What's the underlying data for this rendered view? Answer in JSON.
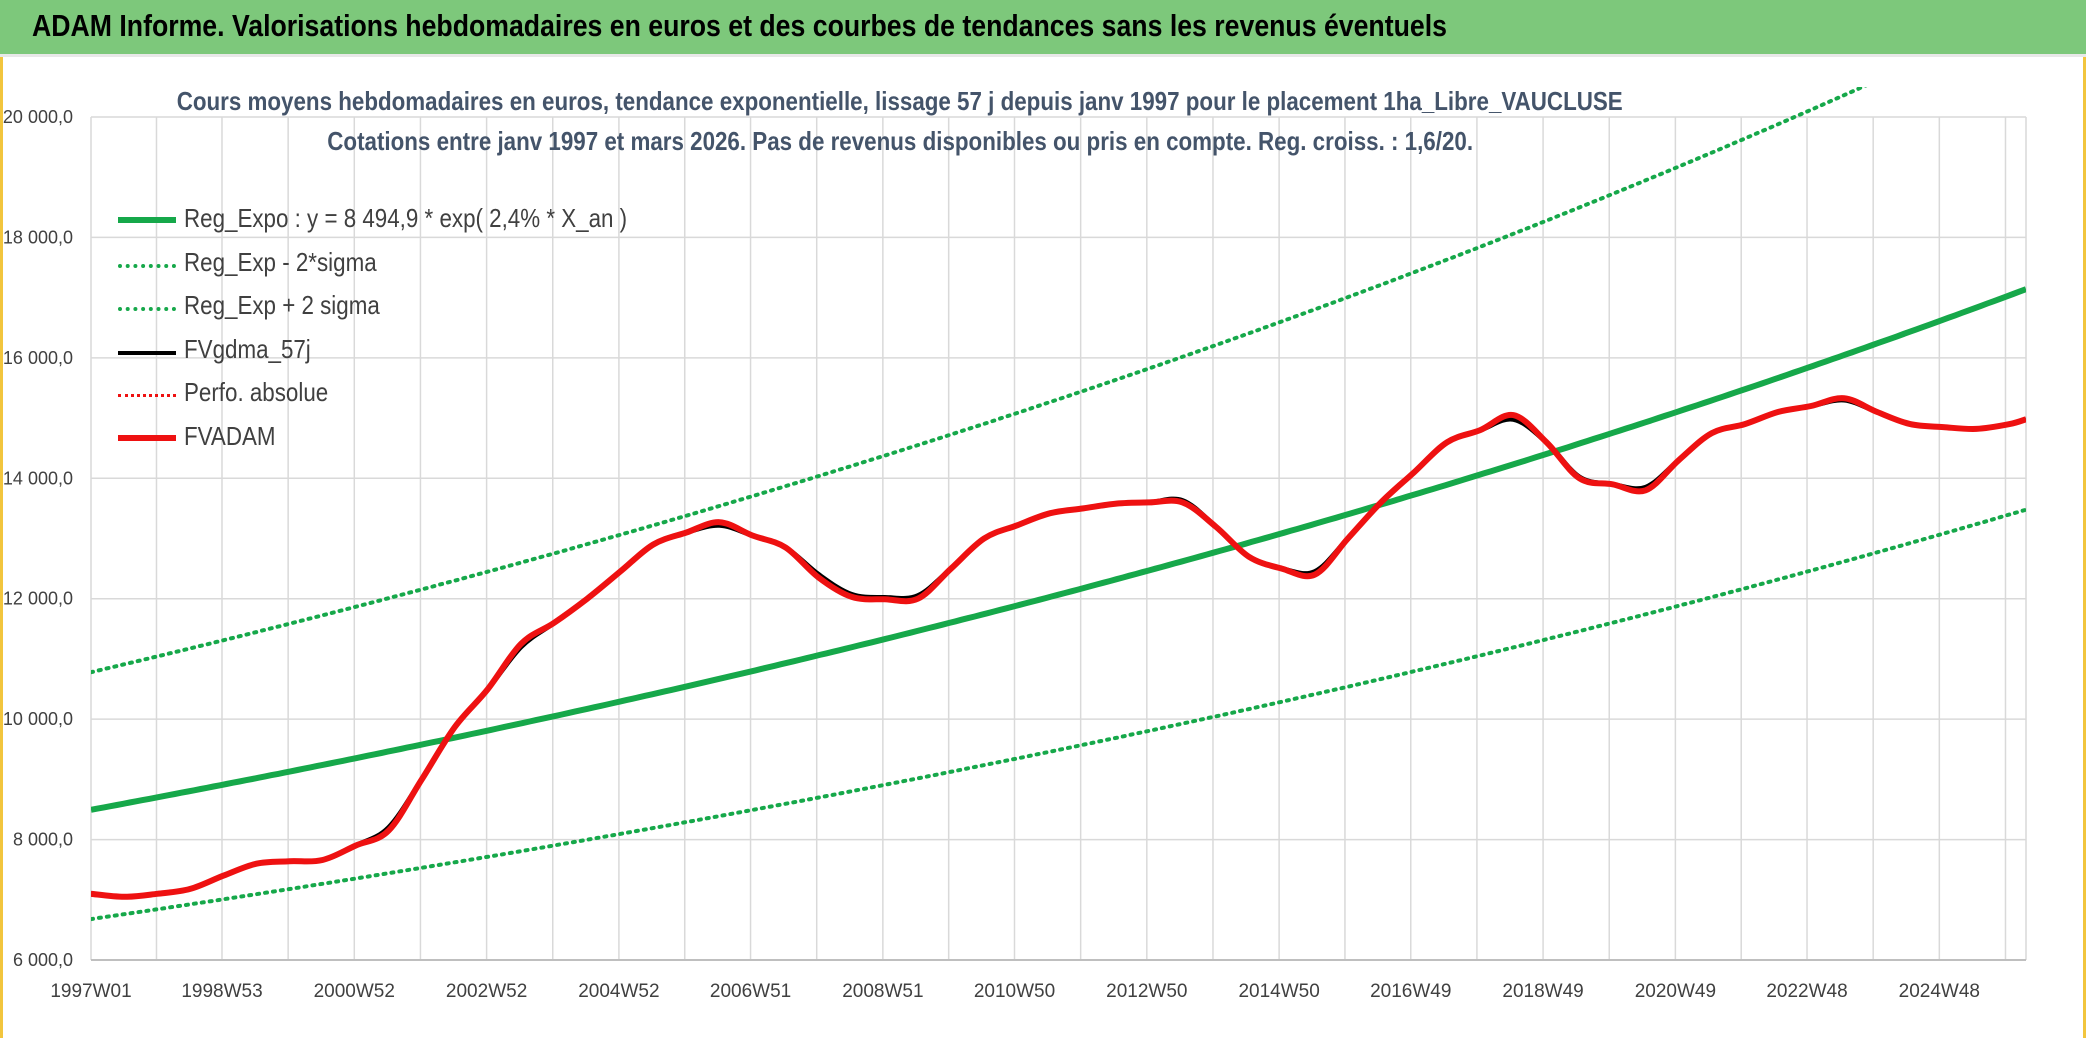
{
  "header": {
    "title": "ADAM Informe. Valorisations hebdomadaires en euros et des courbes de tendances sans les revenus éventuels"
  },
  "colors": {
    "header_bg": "#7dc87b",
    "frame": "#f2c53d",
    "green": "#16a84a",
    "red": "#ee1111",
    "black": "#000000",
    "grid": "#d9d9d9",
    "text": "#404040"
  },
  "chart_data": {
    "type": "line",
    "title_line1": "Cours moyens hebdomadaires en euros, tendance exponentielle, lissage 57 j depuis janv 1997 pour le placement 1ha_Libre_VAUCLUSE",
    "title_line2": "Cotations entre janv 1997 et mars 2026. Pas de revenus disponibles ou pris en compte. Reg. croiss. : 1,6/20.",
    "xlabel": "",
    "ylabel": "",
    "x_range": [
      1997.0,
      2026.25
    ],
    "ylim": [
      6000,
      20000
    ],
    "y_ticks": [
      6000,
      8000,
      10000,
      12000,
      14000,
      16000,
      18000,
      20000
    ],
    "y_tick_labels": [
      "6 000,0",
      "8 000,0",
      "10 000,0",
      "12 000,0",
      "14 000,0",
      "16 000,0",
      "18 000,0",
      "20 000,0"
    ],
    "x_ticks": [
      1997.0,
      1998.98,
      2000.98,
      2002.98,
      2004.98,
      2006.97,
      2008.97,
      2010.96,
      2012.96,
      2014.96,
      2016.95,
      2018.95,
      2020.95,
      2022.94,
      2024.94
    ],
    "x_tick_labels": [
      "1997W01",
      "1998W53",
      "2000W52",
      "2002W52",
      "2004W52",
      "2006W51",
      "2008W51",
      "2010W50",
      "2012W50",
      "2014W50",
      "2016W49",
      "2018W49",
      "2020W49",
      "2022W48",
      "2024W48"
    ],
    "grid": true,
    "legend_position": "top-left",
    "legend": [
      {
        "label": "Reg_Expo : y = 8 494,9 * exp( 2,4% *  X_an )",
        "color": "#16a84a",
        "style": "solid-thick"
      },
      {
        "label": "Reg_Exp - 2*sigma",
        "color": "#16a84a",
        "style": "dotted"
      },
      {
        "label": "Reg_Exp + 2 sigma",
        "color": "#16a84a",
        "style": "dotted"
      },
      {
        "label": "FVgdma_57j",
        "color": "#000000",
        "style": "solid"
      },
      {
        "label": "Perfo. absolue",
        "color": "#ee1111",
        "style": "dotted"
      },
      {
        "label": "FVADAM",
        "color": "#ee1111",
        "style": "solid-thick"
      }
    ],
    "series": [
      {
        "name": "Reg_Expo : y = 8 494,9 * exp( 2,4% *  X_an )",
        "kind": "exp",
        "a": 8494.9,
        "b": 0.024,
        "x0": 1997.0
      },
      {
        "name": "Reg_Exp - 2*sigma",
        "kind": "exp",
        "a": 6680,
        "b": 0.024,
        "x0": 1997.0
      },
      {
        "name": "Reg_Exp + 2 sigma",
        "kind": "exp",
        "a": 10780,
        "b": 0.024,
        "x0": 1997.0
      },
      {
        "name": "FVgdma_57j",
        "kind": "points",
        "x": [
          1997.0,
          1997.5,
          1998.0,
          1998.5,
          1999.0,
          1999.5,
          2000.0,
          2000.5,
          2001.0,
          2001.5,
          2002.0,
          2002.5,
          2003.0,
          2003.5,
          2004.0,
          2004.5,
          2005.0,
          2005.5,
          2006.0,
          2006.5,
          2007.0,
          2007.5,
          2008.0,
          2008.5,
          2009.0,
          2009.5,
          2010.0,
          2010.5,
          2011.0,
          2011.5,
          2012.0,
          2012.5,
          2013.0,
          2013.5,
          2014.0,
          2014.5,
          2015.0,
          2015.5,
          2016.0,
          2016.5,
          2017.0,
          2017.5,
          2018.0,
          2018.5,
          2019.0,
          2019.5,
          2020.0,
          2020.5,
          2021.0,
          2021.5,
          2022.0,
          2022.5,
          2023.0,
          2023.5,
          2024.0,
          2024.5,
          2025.0,
          2025.5,
          2026.0,
          2026.25
        ],
        "y": [
          7100,
          7050,
          7100,
          7180,
          7400,
          7600,
          7640,
          7660,
          7900,
          8200,
          9000,
          9870,
          10500,
          11200,
          11600,
          12000,
          12450,
          12900,
          13100,
          13220,
          13050,
          12850,
          12400,
          12070,
          12020,
          12050,
          12500,
          13000,
          13220,
          13420,
          13500,
          13580,
          13600,
          13630,
          13200,
          12700,
          12500,
          12450,
          13000,
          13600,
          14100,
          14600,
          14800,
          14980,
          14600,
          14020,
          13900,
          13850,
          14300,
          14750,
          14900,
          15100,
          15200,
          15300,
          15100,
          14900,
          14850,
          14820,
          14900,
          14980
        ]
      },
      {
        "name": "Perfo. absolue",
        "kind": "points",
        "x": [
          1997.0,
          1997.5,
          1998.0,
          1998.5,
          1999.0,
          1999.5,
          2000.0,
          2000.5,
          2001.0,
          2001.5,
          2002.0,
          2002.5,
          2003.0,
          2003.5,
          2004.0,
          2004.5,
          2005.0,
          2005.5,
          2006.0,
          2006.5,
          2007.0,
          2007.5,
          2008.0,
          2008.5,
          2009.0,
          2009.5,
          2010.0,
          2010.5,
          2011.0,
          2011.5,
          2012.0,
          2012.5,
          2013.0,
          2013.5,
          2014.0,
          2014.5,
          2015.0,
          2015.5,
          2016.0,
          2016.5,
          2017.0,
          2017.5,
          2018.0,
          2018.5,
          2019.0,
          2019.5,
          2020.0,
          2020.5,
          2021.0,
          2021.5,
          2022.0,
          2022.5,
          2023.0,
          2023.5,
          2024.0,
          2024.5,
          2025.0,
          2025.5,
          2026.0,
          2026.25
        ],
        "y": [
          7100,
          7050,
          7100,
          7180,
          7400,
          7600,
          7640,
          7660,
          7900,
          8150,
          9000,
          9870,
          10500,
          11250,
          11600,
          12000,
          12450,
          12900,
          13100,
          13270,
          13050,
          12850,
          12350,
          12030,
          11990,
          12000,
          12500,
          13000,
          13220,
          13420,
          13500,
          13580,
          13600,
          13600,
          13200,
          12700,
          12500,
          12400,
          13000,
          13600,
          14100,
          14600,
          14800,
          15050,
          14600,
          14000,
          13900,
          13800,
          14300,
          14750,
          14900,
          15100,
          15200,
          15330,
          15100,
          14900,
          14850,
          14820,
          14900,
          14980
        ]
      },
      {
        "name": "FVADAM",
        "kind": "points",
        "x": [
          1997.0,
          1997.5,
          1998.0,
          1998.5,
          1999.0,
          1999.5,
          2000.0,
          2000.5,
          2001.0,
          2001.5,
          2002.0,
          2002.5,
          2003.0,
          2003.5,
          2004.0,
          2004.5,
          2005.0,
          2005.5,
          2006.0,
          2006.5,
          2007.0,
          2007.5,
          2008.0,
          2008.5,
          2009.0,
          2009.5,
          2010.0,
          2010.5,
          2011.0,
          2011.5,
          2012.0,
          2012.5,
          2013.0,
          2013.5,
          2014.0,
          2014.5,
          2015.0,
          2015.5,
          2016.0,
          2016.5,
          2017.0,
          2017.5,
          2018.0,
          2018.5,
          2019.0,
          2019.5,
          2020.0,
          2020.5,
          2021.0,
          2021.5,
          2022.0,
          2022.5,
          2023.0,
          2023.5,
          2024.0,
          2024.5,
          2025.0,
          2025.5,
          2026.0,
          2026.25
        ],
        "y": [
          7100,
          7050,
          7100,
          7180,
          7400,
          7600,
          7640,
          7660,
          7900,
          8150,
          9000,
          9870,
          10500,
          11250,
          11600,
          12000,
          12450,
          12900,
          13100,
          13270,
          13050,
          12850,
          12350,
          12030,
          11990,
          12000,
          12500,
          13000,
          13220,
          13420,
          13500,
          13580,
          13600,
          13600,
          13200,
          12700,
          12500,
          12400,
          13000,
          13600,
          14100,
          14600,
          14800,
          15050,
          14600,
          14000,
          13900,
          13800,
          14300,
          14750,
          14900,
          15100,
          15200,
          15330,
          15100,
          14900,
          14850,
          14820,
          14900,
          14980
        ]
      }
    ]
  }
}
